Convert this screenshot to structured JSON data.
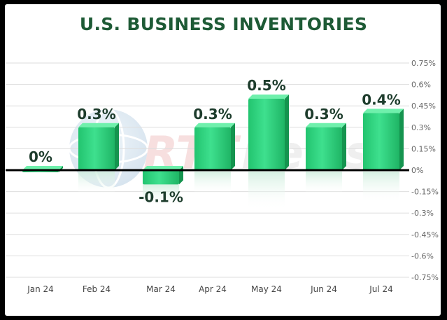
{
  "chart_data": {
    "type": "bar",
    "title": "U.S. BUSINESS INVENTORIES",
    "categories": [
      "Jan 24",
      "Feb 24",
      "Mar 24",
      "Apr 24",
      "May 24",
      "Jun 24",
      "Jul 24"
    ],
    "series": [
      {
        "values": [
          0.0,
          0.3,
          -0.1,
          0.3,
          0.5,
          0.3,
          0.4
        ],
        "data_labels": [
          "0%",
          "0.3%",
          "-0.1%",
          "0.3%",
          "0.5%",
          "0.3%",
          "0.4%"
        ]
      }
    ],
    "ylim": [
      -0.75,
      0.75
    ],
    "yticks": [
      0.75,
      0.6,
      0.45,
      0.3,
      0.15,
      0,
      -0.15,
      -0.3,
      -0.45,
      -0.6,
      -0.75
    ],
    "ytick_labels": [
      "0.75%",
      "0.6%",
      "0.45%",
      "0.3%",
      "0.15%",
      "0%",
      "-0.15%",
      "-0.3%",
      "-0.45%",
      "-0.6%",
      "-0.75%"
    ],
    "y_axis_position": "right",
    "grid": true,
    "bar_color": "#2fd17f",
    "title_color": "#1d5a35"
  }
}
